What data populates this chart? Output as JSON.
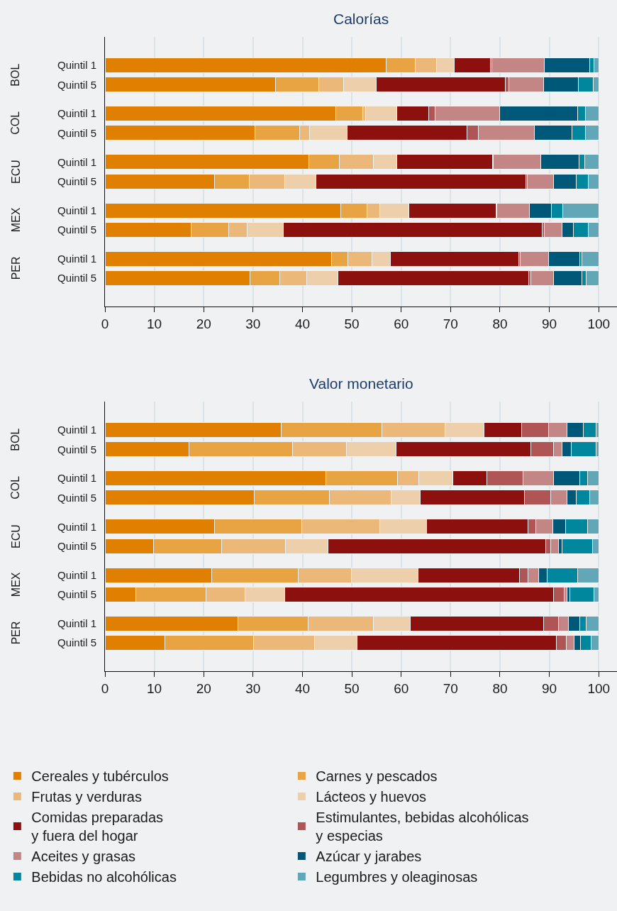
{
  "chart_data": [
    {
      "type": "bar",
      "title": "Calorías",
      "orientation": "horizontal",
      "stacked": true,
      "grid": "x",
      "categories": [
        "Quintil 1",
        "Quintil 5",
        "Quintil 1",
        "Quintil 5",
        "Quintil 1",
        "Quintil 5",
        "Quintil 1",
        "Quintil 5",
        "Quintil 1",
        "Quintil 5"
      ],
      "annotations": [
        "BOL",
        "COL",
        "ECU",
        "MEX",
        "PER"
      ],
      "xlim": [
        0,
        103.7
      ],
      "xticks": [
        0,
        10,
        20,
        30,
        40,
        50,
        60,
        70,
        80,
        90,
        100
      ],
      "series": [
        {
          "color": "#e07f00",
          "values": [
            56.9,
            34.5,
            46.7,
            30.4,
            41.3,
            22.2,
            47.7,
            17.5,
            45.9,
            29.4
          ]
        },
        {
          "color": "#e8a343",
          "values": [
            6.0,
            8.8,
            5.5,
            9.0,
            6.1,
            7.0,
            5.3,
            7.5,
            3.3,
            6.0
          ]
        },
        {
          "color": "#ebb87a",
          "values": [
            4.3,
            5.0,
            0.6,
            2.0,
            6.9,
            7.2,
            2.6,
            3.8,
            4.9,
            5.5
          ]
        },
        {
          "color": "#eecfab",
          "values": [
            3.5,
            6.7,
            6.3,
            7.7,
            4.8,
            6.3,
            5.9,
            7.3,
            3.7,
            6.3
          ]
        },
        {
          "color": "#8b100e",
          "values": [
            7.3,
            26.1,
            6.4,
            24.2,
            19.4,
            42.5,
            17.7,
            52.5,
            26.0,
            38.6
          ]
        },
        {
          "color": "#b05555",
          "values": [
            0.4,
            0.7,
            1.4,
            2.3,
            0.2,
            0.3,
            0.2,
            0.4,
            0.3,
            0.4
          ]
        },
        {
          "color": "#c48585",
          "values": [
            10.6,
            7.1,
            13.1,
            11.3,
            9.6,
            5.4,
            6.6,
            3.6,
            5.7,
            4.7
          ]
        },
        {
          "color": "#005878",
          "values": [
            9.2,
            6.9,
            15.7,
            7.7,
            7.7,
            4.5,
            4.4,
            2.2,
            6.3,
            5.7
          ]
        },
        {
          "color": "#00879e",
          "values": [
            0.9,
            3.1,
            1.6,
            2.7,
            1.2,
            2.5,
            2.3,
            3.1,
            0.5,
            0.9
          ]
        },
        {
          "color": "#62a7b7",
          "values": [
            0.9,
            1.1,
            2.7,
            2.7,
            2.8,
            2.1,
            7.3,
            2.1,
            3.4,
            2.5
          ]
        }
      ]
    },
    {
      "type": "bar",
      "title": "Valor monetario",
      "orientation": "horizontal",
      "stacked": true,
      "grid": "x",
      "legend": "bottom",
      "categories": [
        "Quintil 1",
        "Quintil 5",
        "Quintil 1",
        "Quintil 5",
        "Quintil 1",
        "Quintil 5",
        "Quintil 1",
        "Quintil 5",
        "Quintil 1",
        "Quintil 5"
      ],
      "annotations": [
        "BOL",
        "COL",
        "ECU",
        "MEX",
        "PER"
      ],
      "xlim": [
        0,
        103.7
      ],
      "xticks": [
        0,
        10,
        20,
        30,
        40,
        50,
        60,
        70,
        80,
        90,
        100
      ],
      "series": [
        {
          "name": "Cereales y tubérculos",
          "color": "#e07f00",
          "values": [
            35.7,
            17.0,
            44.7,
            30.3,
            22.2,
            9.8,
            21.6,
            6.3,
            26.9,
            12.1
          ]
        },
        {
          "name": "Carnes y pescados",
          "color": "#e8a343",
          "values": [
            20.4,
            21.0,
            14.6,
            15.2,
            17.6,
            13.8,
            17.6,
            14.2,
            14.2,
            18.0
          ]
        },
        {
          "name": "Frutas y verduras",
          "color": "#ebb87a",
          "values": [
            12.8,
            10.9,
            4.3,
            12.5,
            15.8,
            12.9,
            10.7,
            7.8,
            13.2,
            12.3
          ]
        },
        {
          "name": "Lácteos y huevos",
          "color": "#eecfab",
          "values": [
            7.8,
            10.1,
            6.8,
            5.8,
            9.5,
            8.6,
            13.5,
            8.1,
            7.6,
            8.6
          ]
        },
        {
          "name": "Comidas preparadas\ny fuera del hogar",
          "color": "#8b100e",
          "values": [
            7.7,
            27.3,
            6.9,
            21.1,
            20.6,
            44.2,
            20.6,
            54.5,
            26.9,
            40.4
          ]
        },
        {
          "name": "Estimulantes, bebidas alcohólicas\ny especias",
          "color": "#b05555",
          "values": [
            5.5,
            4.5,
            7.3,
            5.4,
            1.6,
            1.0,
            1.7,
            2.1,
            3.0,
            2.1
          ]
        },
        {
          "name": "Aceites y grasas",
          "color": "#c48585",
          "values": [
            3.7,
            1.8,
            6.3,
            3.3,
            3.4,
            1.5,
            2.1,
            0.6,
            2.1,
            1.5
          ]
        },
        {
          "name": "Azúcar y jarabes",
          "color": "#005878",
          "values": [
            3.3,
            1.8,
            5.3,
            1.8,
            2.6,
            0.8,
            1.7,
            0.6,
            2.2,
            1.3
          ]
        },
        {
          "name": "Bebidas no alcohólicas",
          "color": "#00879e",
          "values": [
            2.5,
            5.1,
            1.6,
            2.7,
            4.4,
            6.2,
            6.2,
            4.9,
            1.3,
            2.1
          ]
        },
        {
          "name": "Legumbres y oleaginosas",
          "color": "#62a7b7",
          "values": [
            0.6,
            0.5,
            2.2,
            1.9,
            2.3,
            1.2,
            4.3,
            0.9,
            2.6,
            1.6
          ]
        }
      ]
    }
  ]
}
